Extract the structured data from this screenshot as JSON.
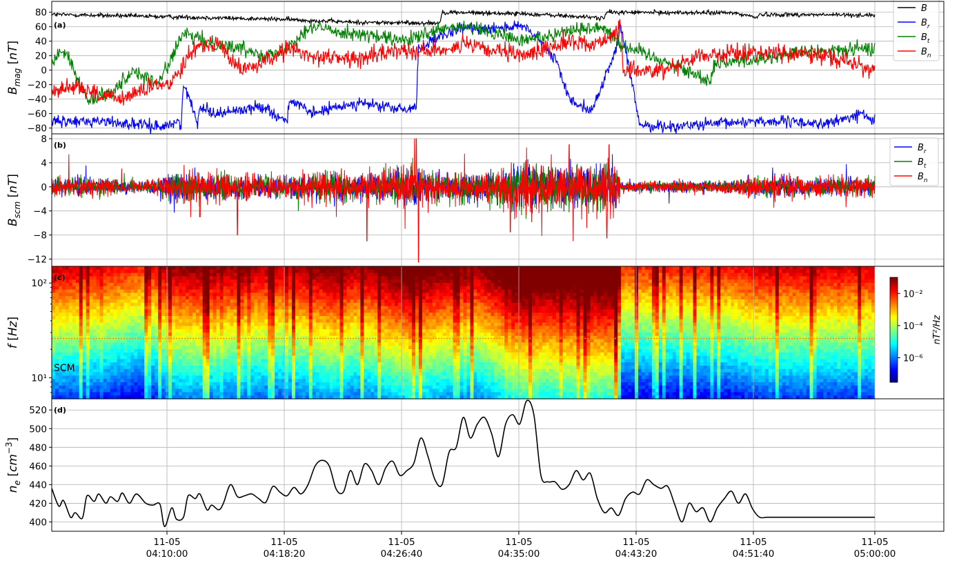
{
  "chart_data": [
    {
      "id": "a",
      "type": "line",
      "panel_label": "(a)",
      "ylabel": "B_mag [nT]",
      "ylim": [
        -88,
        95
      ],
      "yticks": [
        -80,
        -60,
        -40,
        -20,
        0,
        20,
        40,
        60,
        80
      ],
      "grid": true,
      "legend_position": "top-right",
      "series": [
        {
          "name": "B",
          "color": "#000000",
          "noise": 1.5,
          "x": [
            0,
            30,
            60,
            100,
            130,
            165,
            166,
            200,
            235,
            236,
            290,
            300,
            301,
            350
          ],
          "y": [
            77,
            75,
            73,
            70,
            66,
            65,
            80,
            78,
            72,
            80,
            79,
            73,
            77,
            76
          ]
        },
        {
          "name": "B_r",
          "color": "#0000ff",
          "noise": 4,
          "x": [
            0,
            20,
            45,
            55,
            56,
            62,
            63,
            70,
            90,
            100,
            101,
            110,
            130,
            150,
            155,
            156,
            165,
            175,
            200,
            205,
            215,
            220,
            230,
            240,
            242,
            250,
            260,
            280,
            300,
            330,
            345,
            350
          ],
          "y": [
            -72,
            -70,
            -78,
            -72,
            -20,
            -70,
            -50,
            -60,
            -50,
            -72,
            -40,
            -60,
            -45,
            -55,
            -50,
            30,
            45,
            58,
            60,
            50,
            10,
            -40,
            -55,
            30,
            60,
            -75,
            -78,
            -75,
            -70,
            -74,
            -60,
            -72
          ]
        },
        {
          "name": "B_t",
          "color": "#008000",
          "noise": 5,
          "x": [
            0,
            5,
            15,
            25,
            35,
            45,
            56,
            65,
            80,
            95,
            110,
            130,
            150,
            165,
            175,
            190,
            200,
            220,
            235,
            242,
            255,
            280,
            282,
            300,
            320,
            350
          ],
          "y": [
            10,
            30,
            -40,
            -30,
            0,
            -20,
            50,
            40,
            30,
            20,
            60,
            50,
            40,
            55,
            60,
            50,
            40,
            55,
            60,
            35,
            20,
            -15,
            10,
            15,
            25,
            30
          ]
        },
        {
          "name": "B_n",
          "color": "#ff0000",
          "noise": 6,
          "x": [
            0,
            10,
            20,
            30,
            40,
            50,
            60,
            70,
            80,
            90,
            100,
            110,
            130,
            150,
            160,
            175,
            190,
            200,
            220,
            230,
            242,
            243,
            260,
            275,
            300,
            330,
            350
          ],
          "y": [
            -30,
            -20,
            -35,
            -40,
            -25,
            -20,
            30,
            40,
            0,
            10,
            30,
            20,
            15,
            30,
            25,
            35,
            25,
            20,
            40,
            35,
            55,
            0,
            0,
            20,
            25,
            20,
            0
          ]
        }
      ]
    },
    {
      "id": "b",
      "type": "line",
      "panel_label": "(b)",
      "ylabel": "B_scm [nT]",
      "ylim": [
        -13.2,
        8.8
      ],
      "yticks": [
        -12,
        -8,
        -4,
        0,
        4,
        8
      ],
      "grid": true,
      "legend_position": "top-right",
      "activity_profile": {
        "x": [
          0,
          20,
          40,
          50,
          60,
          100,
          120,
          130,
          150,
          180,
          200,
          210,
          240,
          242,
          290,
          300,
          345,
          350
        ],
        "amp": [
          0.9,
          0.8,
          0.4,
          1.2,
          1.3,
          1.0,
          1.5,
          1.1,
          1.8,
          1.2,
          2.2,
          2.0,
          2.2,
          0.4,
          0.6,
          0.9,
          0.8,
          0.9
        ]
      },
      "spikes": [
        [
          63,
          5.5
        ],
        [
          63,
          -5
        ],
        [
          79,
          -8
        ],
        [
          134,
          -9
        ],
        [
          155,
          8
        ],
        [
          156,
          -12.5
        ],
        [
          195,
          -7.5
        ],
        [
          220,
          7
        ],
        [
          236,
          -8.5
        ],
        [
          237,
          7
        ]
      ],
      "series": [
        {
          "name": "B_r",
          "color": "#0000ff"
        },
        {
          "name": "B_t",
          "color": "#008000"
        },
        {
          "name": "B_n",
          "color": "#ff0000"
        }
      ]
    },
    {
      "id": "c",
      "type": "heatmap",
      "panel_label": "(c)",
      "ylabel": "f [Hz]",
      "yscale": "log",
      "ylim": [
        6,
        150
      ],
      "yticks": [
        {
          "value": 10,
          "label": "10¹"
        },
        {
          "value": 100,
          "label": "10²"
        }
      ],
      "instrument_label": "SCM",
      "horizontal_line_hz": 26,
      "colorbar": {
        "label": "nT²/Hz",
        "scale": "log",
        "range": [
          3e-08,
          0.1
        ],
        "ticks": [
          {
            "value": 1e-06,
            "label": "10⁻⁶"
          },
          {
            "value": 0.0001,
            "label": "10⁻⁴"
          },
          {
            "value": 0.01,
            "label": "10⁻²"
          }
        ],
        "colormap": "jet"
      }
    },
    {
      "id": "d",
      "type": "line",
      "panel_label": "(d)",
      "ylabel": "n_e [cm⁻³]",
      "ylim": [
        390,
        532
      ],
      "yticks": [
        400,
        420,
        440,
        460,
        480,
        500,
        520
      ],
      "grid": true,
      "series": [
        {
          "name": "",
          "color": "#000000",
          "x": [
            0,
            3,
            5,
            8,
            10,
            13,
            15,
            18,
            20,
            23,
            25,
            28,
            30,
            33,
            36,
            40,
            43,
            46,
            48,
            51,
            53,
            56,
            58,
            61,
            63,
            66,
            68,
            71,
            73,
            76,
            79,
            82,
            85,
            88,
            91,
            94,
            97,
            100,
            103,
            106,
            109,
            112,
            115,
            118,
            121,
            124,
            127,
            130,
            133,
            136,
            139,
            142,
            145,
            148,
            151,
            154,
            157,
            160,
            163,
            166,
            169,
            172,
            175,
            178,
            181,
            184,
            187,
            190,
            193,
            196,
            199,
            202,
            205,
            208,
            211,
            214,
            217,
            220,
            223,
            226,
            229,
            232,
            235,
            238,
            241,
            244,
            247,
            250,
            253,
            256,
            259,
            262,
            265,
            268,
            271,
            274,
            277,
            280,
            283,
            286,
            289,
            292,
            295,
            298,
            301,
            304,
            307,
            310,
            313,
            316,
            319,
            322,
            325,
            328,
            331,
            334,
            337,
            340,
            343,
            346,
            350
          ],
          "y": [
            436,
            417,
            423,
            405,
            410,
            404,
            428,
            422,
            430,
            420,
            427,
            422,
            431,
            420,
            430,
            420,
            418,
            419,
            395,
            415,
            403,
            405,
            428,
            425,
            430,
            413,
            418,
            413,
            420,
            440,
            427,
            428,
            430,
            425,
            421,
            438,
            432,
            428,
            437,
            430,
            440,
            460,
            466,
            460,
            435,
            432,
            455,
            440,
            462,
            455,
            440,
            458,
            465,
            450,
            455,
            463,
            490,
            470,
            445,
            440,
            475,
            480,
            512,
            490,
            505,
            512,
            495,
            470,
            505,
            515,
            505,
            530,
            515,
            450,
            443,
            443,
            435,
            440,
            455,
            445,
            452,
            425,
            410,
            415,
            407,
            425,
            432,
            430,
            445,
            440,
            436,
            438,
            418,
            400,
            420,
            411,
            415,
            400,
            415,
            425,
            433,
            420,
            430,
            414,
            405,
            405,
            405,
            405,
            405,
            405,
            405,
            405,
            405,
            405,
            405,
            405,
            405,
            405,
            405,
            405,
            405
          ]
        }
      ]
    }
  ],
  "time_axis": {
    "start_minutes": "04:03:17",
    "note_unit": "x values are minutes after 04:03:17 scaled 0-350 over 04:03:17-05:00:00",
    "ticks": [
      {
        "date": "11-05",
        "time": "04:10:00"
      },
      {
        "date": "11-05",
        "time": "04:18:20"
      },
      {
        "date": "11-05",
        "time": "04:26:40"
      },
      {
        "date": "11-05",
        "time": "04:35:00"
      },
      {
        "date": "11-05",
        "time": "04:43:20"
      },
      {
        "date": "11-05",
        "time": "04:51:40"
      },
      {
        "date": "11-05",
        "time": "05:00:00"
      }
    ]
  }
}
